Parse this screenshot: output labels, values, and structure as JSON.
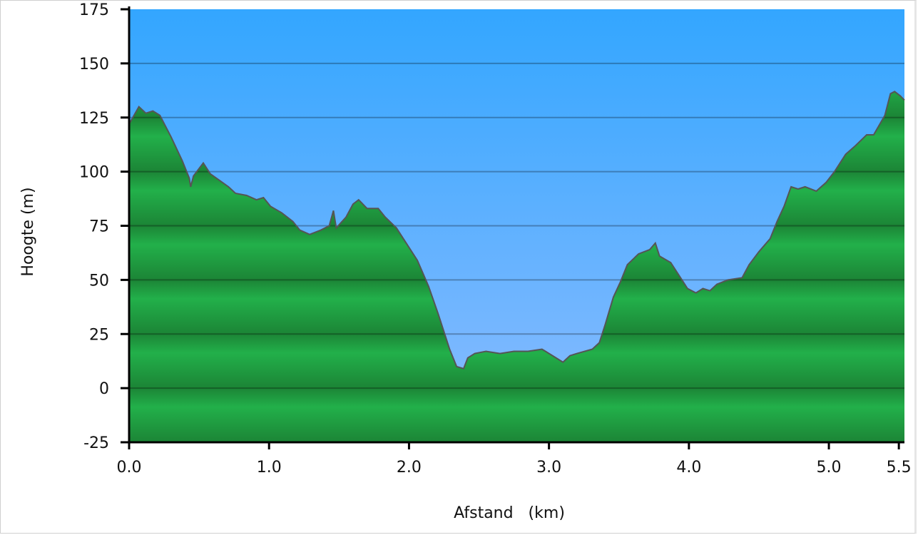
{
  "chart_data": {
    "type": "area",
    "title": "",
    "xlabel": "Afstand   (km)",
    "ylabel": "Hoogte (m)",
    "xlim": [
      0,
      5.54
    ],
    "ylim": [
      -25,
      175
    ],
    "grid": true,
    "x_ticks": [
      "0.0",
      "1.0",
      "2.0",
      "3.0",
      "4.0",
      "5.0",
      "5.5"
    ],
    "x_tick_values": [
      0,
      1,
      2,
      3,
      4,
      5,
      5.5
    ],
    "y_ticks": [
      "175",
      "150",
      "125",
      "100",
      "75",
      "50",
      "25",
      "0",
      "-25"
    ],
    "y_tick_values": [
      175,
      150,
      125,
      100,
      75,
      50,
      25,
      0,
      -25
    ],
    "colors": {
      "sky_top": "#33a6ff",
      "sky_bottom": "#8cbcff",
      "ground_light": "#22b04a",
      "ground_dark": "#1c8536",
      "line": "#555555"
    },
    "x": [
      0,
      0.07,
      0.12,
      0.17,
      0.22,
      0.3,
      0.38,
      0.43,
      0.44,
      0.46,
      0.53,
      0.58,
      0.71,
      0.76,
      0.84,
      0.91,
      0.96,
      1.01,
      1.09,
      1.17,
      1.22,
      1.29,
      1.37,
      1.43,
      1.46,
      1.48,
      1.55,
      1.6,
      1.64,
      1.7,
      1.78,
      1.83,
      1.91,
      1.98,
      2.06,
      2.14,
      2.21,
      2.29,
      2.34,
      2.39,
      2.42,
      2.47,
      2.55,
      2.65,
      2.75,
      2.85,
      2.95,
      3.05,
      3.1,
      3.15,
      3.2,
      3.31,
      3.36,
      3.4,
      3.46,
      3.51,
      3.56,
      3.64,
      3.72,
      3.76,
      3.79,
      3.87,
      3.94,
      3.99,
      4.05,
      4.1,
      4.15,
      4.2,
      4.28,
      4.38,
      4.43,
      4.5,
      4.58,
      4.63,
      4.68,
      4.73,
      4.78,
      4.83,
      4.91,
      4.98,
      5.04,
      5.12,
      5.19,
      5.27,
      5.32,
      5.4,
      5.44,
      5.47,
      5.51,
      5.54
    ],
    "y": [
      122,
      130,
      127,
      128,
      126,
      116,
      105,
      97,
      93,
      98,
      104,
      99,
      93,
      90,
      89,
      87,
      88,
      84,
      81,
      77,
      73,
      71,
      73,
      75,
      82,
      74,
      79,
      85,
      87,
      83,
      83,
      79,
      74,
      67,
      59,
      47,
      34,
      18,
      10,
      9,
      14,
      16,
      17,
      16,
      17,
      17,
      18,
      14,
      12,
      15,
      16,
      18,
      21,
      29,
      42,
      49,
      57,
      62,
      64,
      67,
      61,
      58,
      51,
      46,
      44,
      46,
      45,
      48,
      50,
      51,
      57,
      63,
      69,
      77,
      84,
      93,
      92,
      93,
      91,
      95,
      100,
      108,
      112,
      117,
      117,
      126,
      136,
      137,
      135,
      133
    ]
  }
}
